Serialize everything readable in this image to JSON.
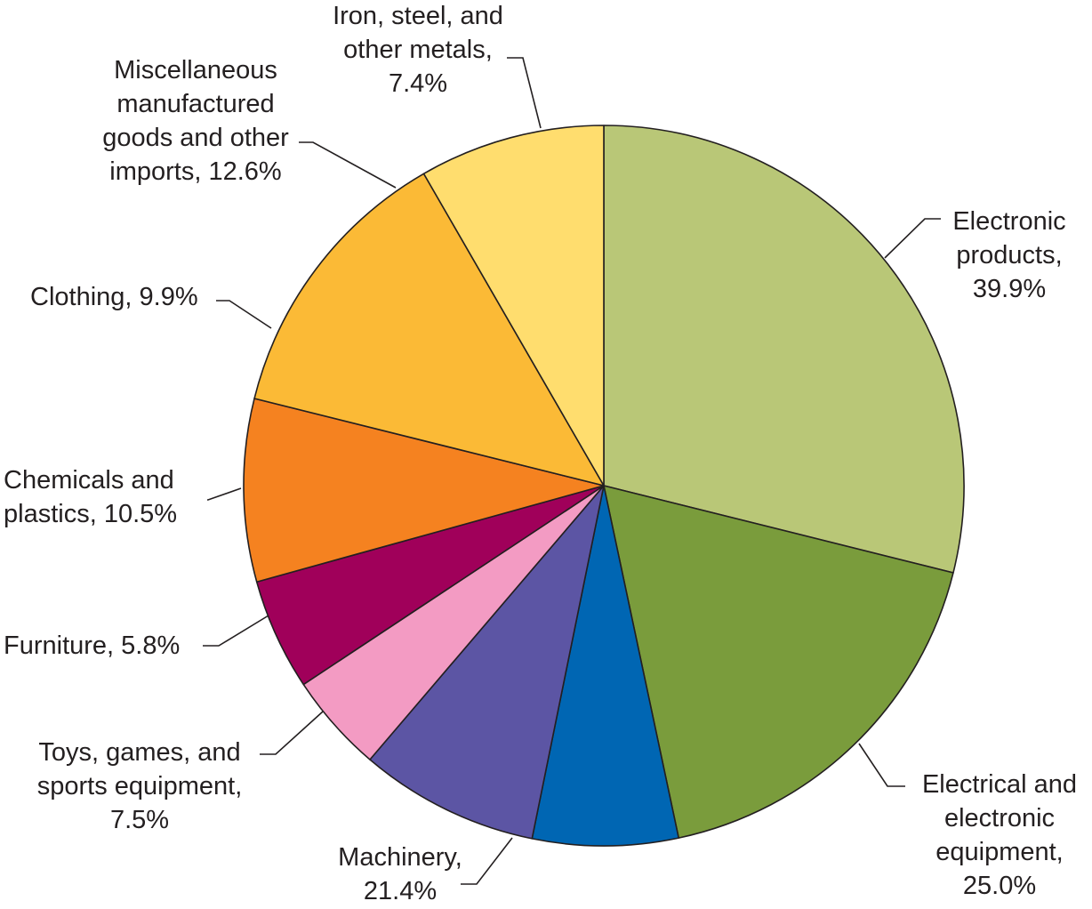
{
  "chart_data": {
    "type": "pie",
    "title": "",
    "slices": [
      {
        "label_lines": [
          "Electronic",
          "products,",
          "39.9%"
        ],
        "value": 39.9,
        "color": "#b9c777"
      },
      {
        "label_lines": [
          "Electrical and",
          "electronic",
          "equipment,",
          "25.0%"
        ],
        "value": 25.0,
        "color": "#7a9c3c"
      },
      {
        "label_lines": [
          "Machinery,",
          "21.4%"
        ],
        "value": 21.4,
        "color": "#0066b3"
      },
      {
        "label_lines": [
          "Toys, games, and",
          "sports equipment,",
          "7.5%"
        ],
        "value": 7.5,
        "color": "#5c55a4"
      },
      {
        "label_lines": [
          "Furniture, 5.8%"
        ],
        "value": 5.8,
        "color": "#f39bc3"
      },
      {
        "label_lines": [
          "Chemicals and",
          "plastics, 10.5%"
        ],
        "value": 10.5,
        "color": "#a0005a"
      },
      {
        "label_lines": [
          "Clothing, 9.9%"
        ],
        "value": 9.9,
        "color": "#f58220"
      },
      {
        "label_lines": [
          "Miscellaneous",
          "manufactured",
          "goods and other",
          "imports, 12.6%"
        ],
        "value": 12.6,
        "color": "#fbba36"
      },
      {
        "label_lines": [
          "Iron, steel, and",
          "other metals,",
          "7.4%"
        ],
        "value": 7.4,
        "color": "#ffdd6e"
      }
    ]
  }
}
